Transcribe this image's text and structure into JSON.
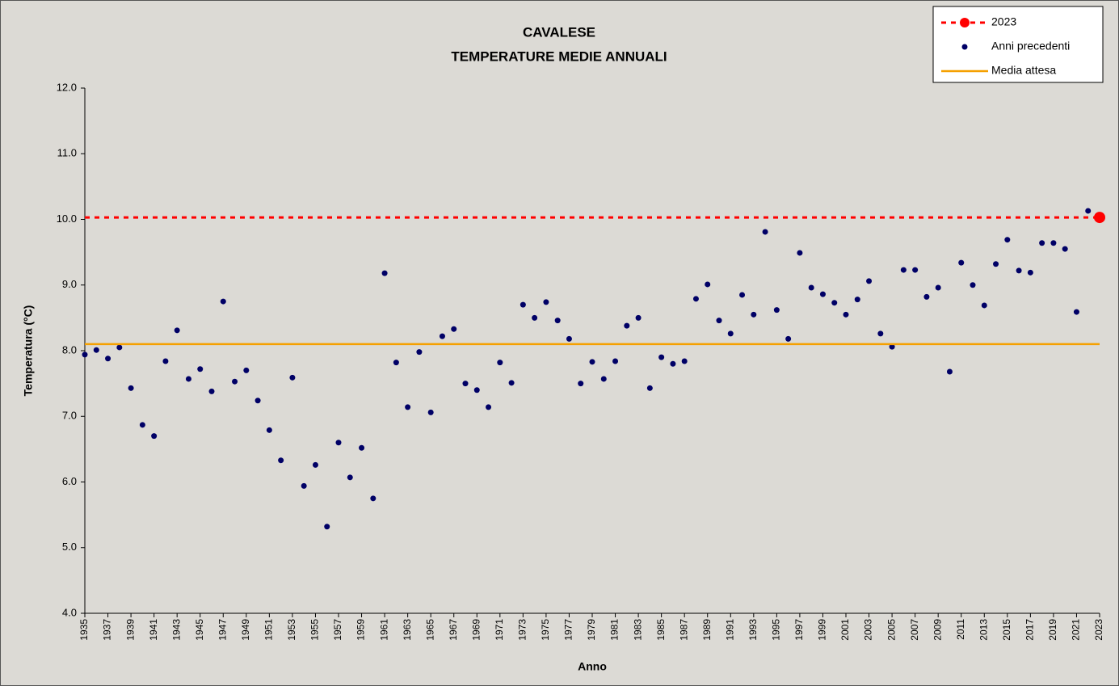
{
  "chart_data": {
    "type": "scatter",
    "title": [
      "CAVALESE",
      "TEMPERATURE MEDIE ANNUALI"
    ],
    "x_label": "Anno",
    "y_label": "Temperatura (°C)",
    "xlim": [
      1935,
      2023
    ],
    "xticks": [
      1935,
      1937,
      1939,
      1941,
      1943,
      1945,
      1947,
      1949,
      1951,
      1953,
      1955,
      1957,
      1959,
      1961,
      1963,
      1965,
      1967,
      1969,
      1971,
      1973,
      1975,
      1977,
      1979,
      1981,
      1983,
      1985,
      1987,
      1989,
      1991,
      1993,
      1995,
      1997,
      1999,
      2001,
      2003,
      2005,
      2007,
      2009,
      2011,
      2013,
      2015,
      2017,
      2019,
      2021,
      2023
    ],
    "ylim": [
      4,
      12
    ],
    "yticks": [
      {
        "value": 4,
        "label": "4.0"
      },
      {
        "value": 5,
        "label": "5.0"
      },
      {
        "value": 6,
        "label": "6.0"
      },
      {
        "value": 7,
        "label": "7.0"
      },
      {
        "value": 8,
        "label": "8.0"
      },
      {
        "value": 9,
        "label": "9.0"
      },
      {
        "value": 10,
        "label": "10.0"
      },
      {
        "value": 11,
        "label": "11.0"
      },
      {
        "value": 12,
        "label": "12.0"
      }
    ],
    "legend": "top-right",
    "series": [
      {
        "name": "2023",
        "color": "#ff0000",
        "marker": "big-dot",
        "line": "dashed",
        "x": [
          2023
        ],
        "values": [
          10.03
        ]
      },
      {
        "name": "Anni precedenti",
        "color": "#000066",
        "marker": "dot",
        "x": [
          1935,
          1936,
          1937,
          1938,
          1939,
          1940,
          1941,
          1942,
          1943,
          1944,
          1945,
          1946,
          1947,
          1948,
          1949,
          1950,
          1951,
          1952,
          1953,
          1954,
          1955,
          1956,
          1957,
          1958,
          1959,
          1960,
          1961,
          1962,
          1963,
          1964,
          1965,
          1966,
          1967,
          1968,
          1969,
          1970,
          1971,
          1972,
          1973,
          1974,
          1975,
          1976,
          1977,
          1978,
          1979,
          1980,
          1981,
          1982,
          1983,
          1984,
          1985,
          1986,
          1987,
          1988,
          1989,
          1990,
          1991,
          1992,
          1993,
          1994,
          1995,
          1996,
          1997,
          1998,
          1999,
          2000,
          2001,
          2002,
          2003,
          2004,
          2005,
          2006,
          2007,
          2008,
          2009,
          2010,
          2011,
          2012,
          2013,
          2014,
          2015,
          2016,
          2017,
          2018,
          2019,
          2020,
          2021,
          2022
        ],
        "values": [
          7.94,
          8.01,
          7.88,
          8.05,
          7.43,
          6.87,
          6.7,
          7.84,
          8.31,
          7.57,
          7.72,
          7.38,
          8.75,
          7.53,
          7.7,
          7.24,
          6.79,
          6.33,
          7.59,
          5.94,
          6.26,
          5.32,
          6.6,
          6.07,
          6.52,
          5.75,
          9.18,
          7.82,
          7.14,
          7.98,
          7.06,
          8.22,
          8.33,
          7.5,
          7.4,
          7.14,
          7.82,
          7.51,
          8.7,
          8.5,
          8.74,
          8.46,
          8.18,
          7.5,
          7.83,
          7.57,
          7.84,
          8.38,
          8.5,
          7.43,
          7.9,
          7.8,
          7.84,
          8.79,
          9.01,
          8.46,
          8.26,
          8.85,
          8.55,
          9.81,
          8.62,
          8.18,
          9.49,
          8.96,
          8.86,
          8.73,
          8.55,
          8.78,
          9.06,
          8.26,
          8.06,
          9.23,
          9.23,
          8.82,
          8.96,
          7.68,
          9.34,
          9.0,
          8.69,
          9.32,
          9.69,
          9.22,
          9.19,
          9.64,
          9.64,
          9.55,
          8.59,
          10.13
        ]
      },
      {
        "name": "Media attesa",
        "color": "#f5a000",
        "line": "solid",
        "values": [
          8.1
        ]
      }
    ]
  }
}
